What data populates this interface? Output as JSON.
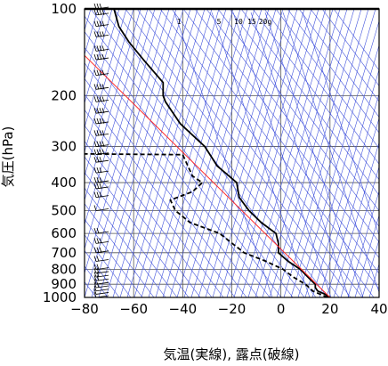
{
  "chart_data": {
    "type": "line",
    "title": "",
    "xlabel": "気温(実線), 露点(破線)",
    "ylabel": "気圧(hPa)",
    "xlim": [
      -80,
      40
    ],
    "ylim": [
      1000,
      100
    ],
    "y_scale": "log",
    "x_ticks": [
      "−80",
      "−60",
      "−40",
      "−20",
      "0",
      "20",
      "40"
    ],
    "y_ticks": [
      "100",
      "200",
      "300",
      "400",
      "500",
      "600",
      "700",
      "800",
      "900",
      "1000"
    ],
    "mixing_ratio_labels": [
      "1",
      "5",
      "10",
      "15",
      "20g"
    ],
    "series": [
      {
        "id": "temperature",
        "style": "solid",
        "color": "#000000",
        "points": [
          {
            "p": 1000,
            "t": 20
          },
          {
            "p": 975,
            "t": 18
          },
          {
            "p": 950,
            "t": 15
          },
          {
            "p": 925,
            "t": 14
          },
          {
            "p": 900,
            "t": 14
          },
          {
            "p": 875,
            "t": 12.5
          },
          {
            "p": 850,
            "t": 11
          },
          {
            "p": 800,
            "t": 8
          },
          {
            "p": 750,
            "t": 3
          },
          {
            "p": 700,
            "t": -1
          },
          {
            "p": 650,
            "t": -1
          },
          {
            "p": 600,
            "t": -2
          },
          {
            "p": 550,
            "t": -8
          },
          {
            "p": 500,
            "t": -13
          },
          {
            "p": 450,
            "t": -17
          },
          {
            "p": 400,
            "t": -18
          },
          {
            "p": 350,
            "t": -26
          },
          {
            "p": 300,
            "t": -31
          },
          {
            "p": 250,
            "t": -41
          },
          {
            "p": 210,
            "t": -47
          },
          {
            "p": 200,
            "t": -48
          },
          {
            "p": 180,
            "t": -48
          },
          {
            "p": 150,
            "t": -56
          },
          {
            "p": 130,
            "t": -62
          },
          {
            "p": 115,
            "t": -66
          },
          {
            "p": 100,
            "t": -68
          }
        ]
      },
      {
        "id": "dewpoint",
        "style": "dashed",
        "color": "#000000",
        "points": [
          {
            "p": 1000,
            "t": 19
          },
          {
            "p": 950,
            "t": 13
          },
          {
            "p": 900,
            "t": 10
          },
          {
            "p": 850,
            "t": 5
          },
          {
            "p": 800,
            "t": 1
          },
          {
            "p": 750,
            "t": -6
          },
          {
            "p": 700,
            "t": -15
          },
          {
            "p": 600,
            "t": -25
          },
          {
            "p": 550,
            "t": -37
          },
          {
            "p": 500,
            "t": -43
          },
          {
            "p": 460,
            "t": -45
          },
          {
            "p": 430,
            "t": -36
          },
          {
            "p": 400,
            "t": -32
          },
          {
            "p": 380,
            "t": -36
          },
          {
            "p": 320,
            "t": -40
          },
          {
            "p": 318,
            "t": -82
          }
        ]
      },
      {
        "id": "reference",
        "style": "solid",
        "color": "#ff2a2a",
        "points": [
          {
            "p": 1000,
            "t": 20
          },
          {
            "p": 145,
            "t": -80
          }
        ]
      }
    ],
    "wind_barbs": [
      {
        "p": 1000,
        "spd": 10
      },
      {
        "p": 975,
        "spd": 5
      },
      {
        "p": 950,
        "spd": 10
      },
      {
        "p": 925,
        "spd": 15
      },
      {
        "p": 900,
        "spd": 10
      },
      {
        "p": 875,
        "spd": 15
      },
      {
        "p": 850,
        "spd": 15
      },
      {
        "p": 825,
        "spd": 20
      },
      {
        "p": 800,
        "spd": 20
      },
      {
        "p": 750,
        "spd": 20
      },
      {
        "p": 700,
        "spd": 25
      },
      {
        "p": 650,
        "spd": 25
      },
      {
        "p": 600,
        "spd": 20
      },
      {
        "p": 500,
        "spd": 10
      },
      {
        "p": 450,
        "spd": 25
      },
      {
        "p": 420,
        "spd": 25
      },
      {
        "p": 400,
        "spd": 30
      },
      {
        "p": 370,
        "spd": 30
      },
      {
        "p": 340,
        "spd": 30
      },
      {
        "p": 320,
        "spd": 35
      },
      {
        "p": 300,
        "spd": 35
      },
      {
        "p": 275,
        "spd": 35
      },
      {
        "p": 250,
        "spd": 40
      },
      {
        "p": 230,
        "spd": 40
      },
      {
        "p": 210,
        "spd": 40
      },
      {
        "p": 190,
        "spd": 35
      },
      {
        "p": 170,
        "spd": 35
      },
      {
        "p": 150,
        "spd": 35
      },
      {
        "p": 140,
        "spd": 35
      },
      {
        "p": 125,
        "spd": 40
      },
      {
        "p": 115,
        "spd": 35
      },
      {
        "p": 105,
        "spd": 35
      },
      {
        "p": 100,
        "spd": 30
      }
    ],
    "grid": true,
    "legend": "none"
  }
}
